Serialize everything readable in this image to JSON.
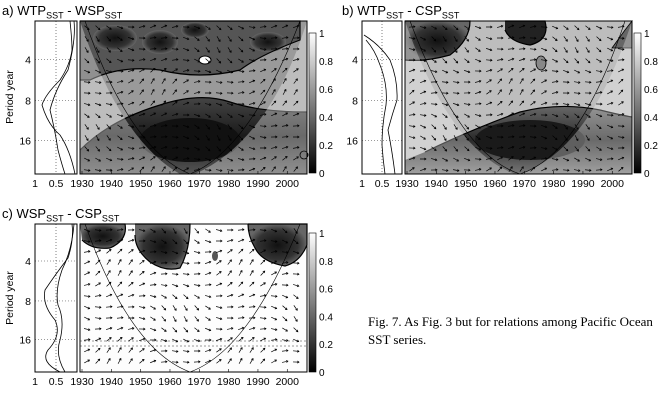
{
  "panels": [
    {
      "letter": "a)",
      "title_a": "WTP",
      "sub_a": "SST",
      "sep": " - ",
      "title_b": "WSP",
      "sub_b": "SST"
    },
    {
      "letter": "b)",
      "title_a": "WTP",
      "sub_a": "SST",
      "sep": " - ",
      "title_b": "CSP",
      "sub_b": "SST"
    },
    {
      "letter": "c)",
      "title_a": "WSP",
      "sub_a": "SST",
      "sep": " - ",
      "title_b": "CSP",
      "sub_b": "SST"
    }
  ],
  "caption": "Fig. 7. As Fig. 3 but for relations among Pacific Ocean SST series.",
  "chart_data": [
    {
      "type": "heatmap",
      "title": "a) WTPSST - WSPSST",
      "ylabel": "Period year",
      "y_ticks": [
        "4",
        "8",
        "16"
      ],
      "x_ticks": [
        "1930",
        "1940",
        "1950",
        "1960",
        "1970",
        "1980",
        "1990",
        "2000"
      ],
      "side_x_ticks": [
        "1",
        "0.5"
      ],
      "colorbar_ticks": [
        "1",
        "0.8",
        "0.6",
        "0.4",
        "0.2",
        "0"
      ]
    },
    {
      "type": "heatmap",
      "title": "b) WTPSST - CSPSST",
      "ylabel": "",
      "y_ticks": [
        "4",
        "8",
        "16"
      ],
      "x_ticks": [
        "1930",
        "1940",
        "1950",
        "1960",
        "1970",
        "1980",
        "1990",
        "2000"
      ],
      "side_x_ticks": [
        "1",
        "0.5"
      ],
      "colorbar_ticks": [
        "1",
        "0.8",
        "0.6",
        "0.4",
        "0.2",
        "0"
      ]
    },
    {
      "type": "heatmap",
      "title": "c) WSPSST - CSPSST",
      "ylabel": "Period year",
      "y_ticks": [
        "4",
        "8",
        "16"
      ],
      "x_ticks": [
        "1930",
        "1940",
        "1950",
        "1960",
        "1970",
        "1980",
        "1990",
        "2000"
      ],
      "side_x_ticks": [
        "1",
        "0.5"
      ],
      "colorbar_ticks": [
        "1",
        "0.8",
        "0.6",
        "0.4",
        "0.2",
        "0"
      ]
    }
  ]
}
